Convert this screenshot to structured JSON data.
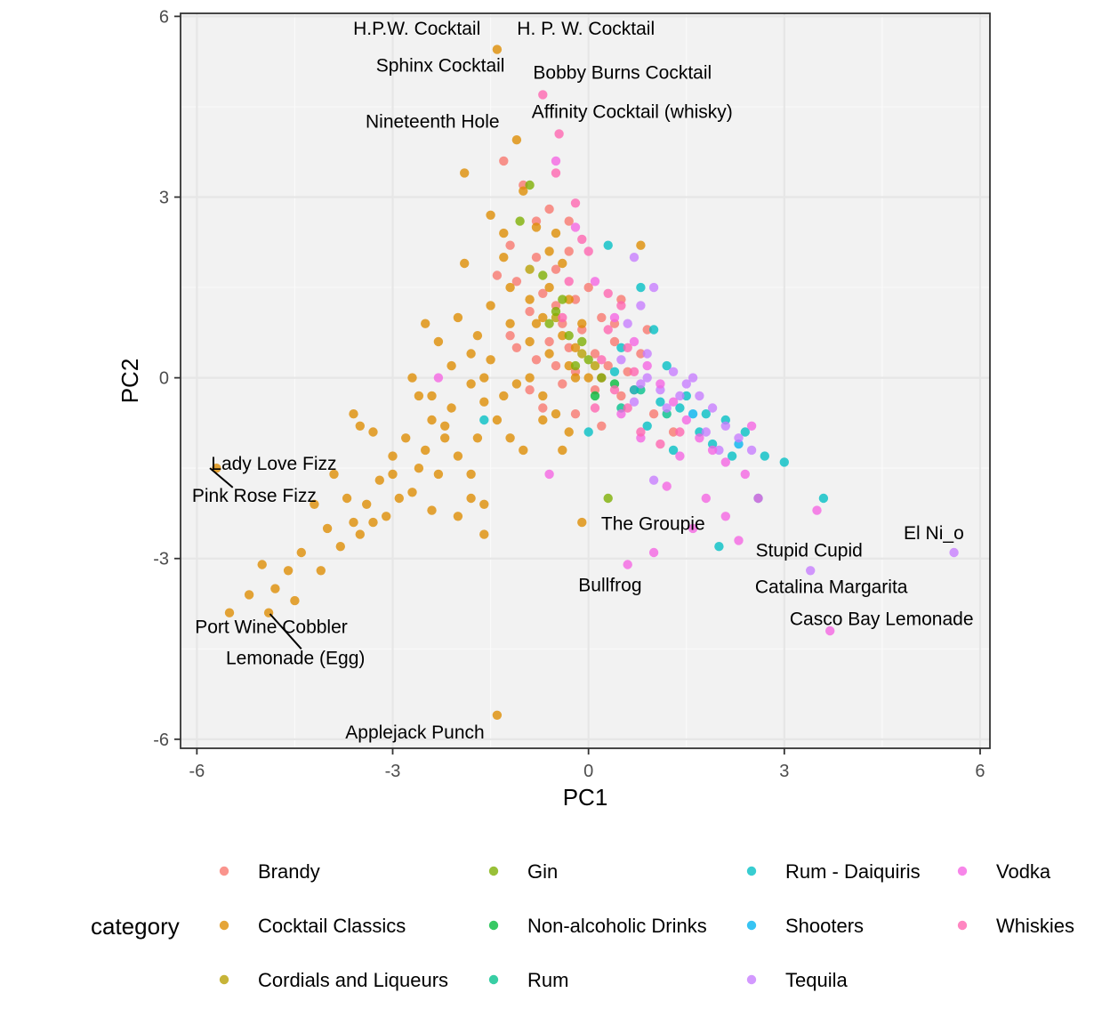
{
  "chart_data": {
    "type": "scatter",
    "title": "",
    "xlabel": "PC1",
    "ylabel": "PC2",
    "xlim": [
      -6.25,
      6.15
    ],
    "ylim": [
      -6.15,
      6.05
    ],
    "xticks": [
      -6,
      -3,
      0,
      3,
      6
    ],
    "yticks": [
      -6,
      -3,
      0,
      3,
      6
    ],
    "grid": true,
    "legend_position": "bottom",
    "legend_title": "category",
    "series": [
      {
        "name": "Brandy",
        "color": "#F8766D",
        "points": [
          [
            -1.3,
            3.6
          ],
          [
            -1.0,
            3.2
          ],
          [
            -0.6,
            2.8
          ],
          [
            -0.3,
            2.6
          ],
          [
            -1.2,
            2.2
          ],
          [
            -0.8,
            2.0
          ],
          [
            -0.5,
            1.8
          ],
          [
            -1.1,
            1.6
          ],
          [
            -0.7,
            1.4
          ],
          [
            -0.2,
            1.3
          ],
          [
            -0.9,
            1.1
          ],
          [
            -0.4,
            0.9
          ],
          [
            -0.1,
            0.8
          ],
          [
            0.2,
            1.0
          ],
          [
            -0.6,
            0.6
          ],
          [
            -0.3,
            0.5
          ],
          [
            0.1,
            0.4
          ],
          [
            0.4,
            0.6
          ],
          [
            -0.8,
            0.3
          ],
          [
            -0.5,
            0.2
          ],
          [
            -0.2,
            0.1
          ],
          [
            0.3,
            0.2
          ],
          [
            0.6,
            0.1
          ],
          [
            -0.4,
            -0.1
          ],
          [
            0.1,
            -0.2
          ],
          [
            0.5,
            -0.3
          ],
          [
            -0.7,
            -0.5
          ],
          [
            -0.2,
            -0.6
          ],
          [
            0.2,
            -0.8
          ],
          [
            -1.2,
            0.7
          ],
          [
            -0.9,
            -0.2
          ],
          [
            0.8,
            0.4
          ],
          [
            0.4,
            0.9
          ],
          [
            -1.4,
            1.7
          ],
          [
            0.0,
            1.5
          ],
          [
            0.7,
            -0.2
          ],
          [
            1.0,
            -0.6
          ],
          [
            1.3,
            -0.9
          ],
          [
            -0.5,
            1.2
          ],
          [
            0.2,
            0.0
          ],
          [
            -1.1,
            0.5
          ],
          [
            0.5,
            1.3
          ],
          [
            -0.3,
            2.1
          ],
          [
            -0.8,
            2.6
          ],
          [
            0.9,
            0.8
          ]
        ]
      },
      {
        "name": "Cocktail Classics",
        "color": "#DE8C00",
        "points": [
          [
            -1.4,
            5.45
          ],
          [
            -1.1,
            3.95
          ],
          [
            -1.9,
            3.4
          ],
          [
            -1.3,
            2.4
          ],
          [
            -1.0,
            3.1
          ],
          [
            -0.8,
            2.5
          ],
          [
            -0.6,
            2.1
          ],
          [
            -0.4,
            1.9
          ],
          [
            -1.9,
            1.9
          ],
          [
            -1.5,
            1.2
          ],
          [
            -1.2,
            0.9
          ],
          [
            -0.9,
            0.6
          ],
          [
            -0.6,
            0.4
          ],
          [
            -0.3,
            0.2
          ],
          [
            0.0,
            0.0
          ],
          [
            -2.3,
            0.6
          ],
          [
            -2.1,
            0.2
          ],
          [
            -1.8,
            -0.1
          ],
          [
            -1.6,
            -0.4
          ],
          [
            -1.4,
            -0.7
          ],
          [
            -1.2,
            -1.0
          ],
          [
            -2.6,
            -0.3
          ],
          [
            -2.4,
            -0.7
          ],
          [
            -2.2,
            -1.0
          ],
          [
            -2.0,
            -1.3
          ],
          [
            -1.8,
            -1.6
          ],
          [
            -2.8,
            -1.0
          ],
          [
            -3.0,
            -1.3
          ],
          [
            -3.2,
            -1.7
          ],
          [
            -3.4,
            -2.1
          ],
          [
            -3.6,
            -2.4
          ],
          [
            -3.8,
            -2.8
          ],
          [
            -4.0,
            -2.5
          ],
          [
            -4.2,
            -2.1
          ],
          [
            -4.4,
            -2.9
          ],
          [
            -4.6,
            -3.2
          ],
          [
            -4.8,
            -3.5
          ],
          [
            -5.0,
            -3.1
          ],
          [
            -5.2,
            -3.6
          ],
          [
            -5.5,
            -3.9
          ],
          [
            -4.9,
            -3.9
          ],
          [
            -4.5,
            -3.7
          ],
          [
            -3.6,
            -0.6
          ],
          [
            -3.3,
            -0.9
          ],
          [
            -3.0,
            -1.6
          ],
          [
            -2.7,
            -1.9
          ],
          [
            -2.4,
            -2.2
          ],
          [
            -2.0,
            -2.3
          ],
          [
            -1.6,
            -2.1
          ],
          [
            -1.6,
            -2.6
          ],
          [
            -1.4,
            -5.6
          ],
          [
            -5.7,
            -1.5
          ],
          [
            -3.9,
            -1.6
          ],
          [
            -3.5,
            -2.6
          ],
          [
            -3.1,
            -2.3
          ],
          [
            -2.7,
            0.0
          ],
          [
            -2.4,
            -0.3
          ],
          [
            -2.1,
            -0.5
          ],
          [
            -1.5,
            0.3
          ],
          [
            -1.7,
            0.7
          ],
          [
            -2.0,
            1.0
          ],
          [
            -2.5,
            0.9
          ],
          [
            -0.9,
            0.0
          ],
          [
            -0.7,
            -0.3
          ],
          [
            -0.5,
            -0.6
          ],
          [
            -0.3,
            -0.9
          ],
          [
            -0.4,
            -1.2
          ],
          [
            -0.1,
            -2.4
          ],
          [
            0.8,
            2.2
          ],
          [
            -0.6,
            1.5
          ],
          [
            -0.9,
            1.3
          ],
          [
            -1.2,
            1.5
          ],
          [
            -0.3,
            1.3
          ],
          [
            -0.1,
            0.9
          ],
          [
            -0.2,
            0.5
          ],
          [
            -0.8,
            0.9
          ],
          [
            -1.0,
            -1.2
          ],
          [
            -0.7,
            -0.7
          ],
          [
            -1.3,
            -0.3
          ],
          [
            -1.6,
            0.0
          ],
          [
            -1.8,
            0.4
          ],
          [
            -2.2,
            -0.8
          ],
          [
            -2.6,
            -1.5
          ],
          [
            -2.9,
            -2.0
          ],
          [
            -3.3,
            -2.4
          ],
          [
            -3.7,
            -2.0
          ],
          [
            -4.1,
            -3.2
          ],
          [
            -1.5,
            2.7
          ],
          [
            -1.3,
            2.0
          ],
          [
            -0.5,
            2.4
          ],
          [
            -0.7,
            1.0
          ],
          [
            -0.2,
            0.0
          ],
          [
            -1.1,
            -0.1
          ],
          [
            -1.7,
            -1.0
          ],
          [
            -2.3,
            -1.6
          ],
          [
            -2.5,
            -1.2
          ],
          [
            -0.4,
            0.7
          ],
          [
            -3.5,
            -0.8
          ],
          [
            -1.8,
            -2.0
          ]
        ]
      },
      {
        "name": "Cordials and Liqueurs",
        "color": "#B79F00",
        "points": [
          [
            -0.9,
            1.8
          ],
          [
            -0.5,
            1.0
          ],
          [
            -0.1,
            0.4
          ],
          [
            0.1,
            0.2
          ]
        ]
      },
      {
        "name": "Gin",
        "color": "#7CAE00",
        "points": [
          [
            -0.9,
            3.2
          ],
          [
            -1.05,
            2.6
          ],
          [
            -0.7,
            1.7
          ],
          [
            -0.4,
            1.3
          ],
          [
            -0.6,
            0.9
          ],
          [
            -0.3,
            0.7
          ],
          [
            -0.1,
            0.6
          ],
          [
            0.0,
            0.3
          ],
          [
            -0.2,
            0.2
          ],
          [
            0.2,
            0.0
          ],
          [
            0.3,
            -2.0
          ],
          [
            -0.5,
            1.1
          ]
        ]
      },
      {
        "name": "Non-alcoholic Drinks",
        "color": "#00BA38",
        "points": [
          [
            0.1,
            -0.3
          ],
          [
            0.4,
            -0.1
          ]
        ]
      },
      {
        "name": "Rum",
        "color": "#00C08B",
        "points": [
          [
            0.5,
            -0.5
          ],
          [
            0.8,
            -0.2
          ],
          [
            1.2,
            -0.6
          ]
        ]
      },
      {
        "name": "Rum - Daiquiris",
        "color": "#00BFC4",
        "points": [
          [
            0.3,
            2.2
          ],
          [
            0.8,
            1.5
          ],
          [
            1.0,
            0.8
          ],
          [
            0.5,
            0.5
          ],
          [
            1.2,
            0.2
          ],
          [
            1.5,
            -0.3
          ],
          [
            1.8,
            -0.6
          ],
          [
            2.1,
            -0.7
          ],
          [
            2.4,
            -0.9
          ],
          [
            2.7,
            -1.3
          ],
          [
            3.0,
            -1.4
          ],
          [
            3.6,
            -2.0
          ],
          [
            2.0,
            -2.8
          ],
          [
            2.6,
            -2.0
          ],
          [
            1.7,
            -0.9
          ],
          [
            1.4,
            -0.5
          ],
          [
            1.1,
            -0.4
          ],
          [
            0.7,
            -0.2
          ],
          [
            0.4,
            0.1
          ],
          [
            0.9,
            -0.8
          ],
          [
            1.9,
            -1.1
          ],
          [
            2.2,
            -1.3
          ],
          [
            -1.6,
            -0.7
          ],
          [
            0.0,
            -0.9
          ],
          [
            1.3,
            -1.2
          ]
        ]
      },
      {
        "name": "Shooters",
        "color": "#00B4F0",
        "points": [
          [
            1.6,
            -0.6
          ],
          [
            2.3,
            -1.1
          ]
        ]
      },
      {
        "name": "Tequila",
        "color": "#C77CFF",
        "points": [
          [
            0.7,
            2.0
          ],
          [
            1.0,
            1.5
          ],
          [
            0.8,
            1.2
          ],
          [
            0.6,
            0.9
          ],
          [
            1.3,
            0.1
          ],
          [
            1.5,
            -0.1
          ],
          [
            1.7,
            -0.3
          ],
          [
            1.9,
            -0.5
          ],
          [
            2.1,
            -0.8
          ],
          [
            2.3,
            -1.0
          ],
          [
            2.5,
            -1.2
          ],
          [
            3.4,
            -3.2
          ],
          [
            5.6,
            -2.9
          ],
          [
            0.9,
            0.4
          ],
          [
            1.1,
            -0.2
          ],
          [
            0.7,
            -0.4
          ],
          [
            1.2,
            -0.5
          ],
          [
            0.5,
            0.3
          ],
          [
            1.6,
            0.0
          ],
          [
            1.8,
            -0.9
          ],
          [
            2.0,
            -1.2
          ],
          [
            1.0,
            -1.7
          ],
          [
            0.9,
            0.0
          ],
          [
            1.4,
            -0.3
          ],
          [
            0.8,
            -0.1
          ]
        ]
      },
      {
        "name": "Vodka",
        "color": "#F564E3",
        "points": [
          [
            -0.5,
            3.6
          ],
          [
            -0.2,
            2.5
          ],
          [
            0.1,
            1.6
          ],
          [
            0.4,
            1.0
          ],
          [
            0.7,
            0.6
          ],
          [
            0.9,
            0.2
          ],
          [
            1.1,
            -0.1
          ],
          [
            1.3,
            -0.4
          ],
          [
            1.5,
            -0.7
          ],
          [
            1.7,
            -1.0
          ],
          [
            1.9,
            -1.2
          ],
          [
            2.1,
            -1.4
          ],
          [
            2.4,
            -1.6
          ],
          [
            2.6,
            -2.0
          ],
          [
            3.5,
            -2.2
          ],
          [
            3.7,
            -4.2
          ],
          [
            0.6,
            -3.1
          ],
          [
            1.0,
            -2.9
          ],
          [
            1.6,
            -2.5
          ],
          [
            2.3,
            -2.7
          ],
          [
            -2.3,
            0.0
          ],
          [
            -0.6,
            -1.6
          ],
          [
            0.8,
            -1.0
          ],
          [
            1.2,
            -1.8
          ],
          [
            2.1,
            -2.3
          ],
          [
            1.8,
            -2.0
          ],
          [
            0.5,
            -0.6
          ],
          [
            2.5,
            -0.8
          ],
          [
            1.4,
            -1.3
          ]
        ]
      },
      {
        "name": "Whiskies",
        "color": "#FF64B0",
        "points": [
          [
            -0.7,
            4.7
          ],
          [
            -0.45,
            4.05
          ],
          [
            -0.5,
            3.4
          ],
          [
            -0.2,
            2.9
          ],
          [
            -0.1,
            2.3
          ],
          [
            0.0,
            2.1
          ],
          [
            0.3,
            1.4
          ],
          [
            0.5,
            1.2
          ],
          [
            0.6,
            0.5
          ],
          [
            0.2,
            0.3
          ],
          [
            0.4,
            -0.2
          ],
          [
            0.6,
            -0.5
          ],
          [
            0.8,
            -0.9
          ],
          [
            1.1,
            -1.1
          ],
          [
            0.3,
            0.8
          ],
          [
            -0.3,
            1.6
          ],
          [
            -0.4,
            1.0
          ],
          [
            0.1,
            -0.5
          ],
          [
            0.7,
            0.1
          ],
          [
            1.4,
            -0.9
          ]
        ]
      }
    ],
    "annotations": [
      {
        "text": "H.P.W. Cocktail",
        "x": -2.63,
        "y": 5.79
      },
      {
        "text": "H. P. W. Cocktail",
        "x": -0.04,
        "y": 5.79
      },
      {
        "text": "Sphinx Cocktail",
        "x": -2.27,
        "y": 5.18
      },
      {
        "text": "Bobby Burns Cocktail",
        "x": 0.52,
        "y": 5.06
      },
      {
        "text": "Nineteenth Hole",
        "x": -2.39,
        "y": 4.25
      },
      {
        "text": "Affinity Cocktail (whisky)",
        "x": 0.67,
        "y": 4.41
      },
      {
        "text": "Lady Love Fizz",
        "x": -4.82,
        "y": -1.43
      },
      {
        "text": "Pink Rose Fizz",
        "x": -5.12,
        "y": -1.96
      },
      {
        "text": "The Groupie",
        "x": 0.99,
        "y": -2.43
      },
      {
        "text": "El Ni_o",
        "x": 5.29,
        "y": -2.58
      },
      {
        "text": "Stupid Cupid",
        "x": 3.38,
        "y": -2.87
      },
      {
        "text": "Bullfrog",
        "x": 0.33,
        "y": -3.45
      },
      {
        "text": "Catalina Margarita",
        "x": 3.72,
        "y": -3.48
      },
      {
        "text": "Casco Bay Lemonade",
        "x": 4.49,
        "y": -4.01
      },
      {
        "text": "Port Wine Cobbler",
        "x": -4.86,
        "y": -4.14
      },
      {
        "text": "Lemonade (Egg)",
        "x": -4.49,
        "y": -4.66
      },
      {
        "text": "Applejack Punch",
        "x": -2.66,
        "y": -5.89
      }
    ],
    "connectors": [
      {
        "from": [
          -5.8,
          -1.5
        ],
        "to": [
          -5.45,
          -1.82
        ]
      },
      {
        "from": [
          -4.88,
          -3.92
        ],
        "to": [
          -4.4,
          -4.5
        ]
      }
    ]
  }
}
